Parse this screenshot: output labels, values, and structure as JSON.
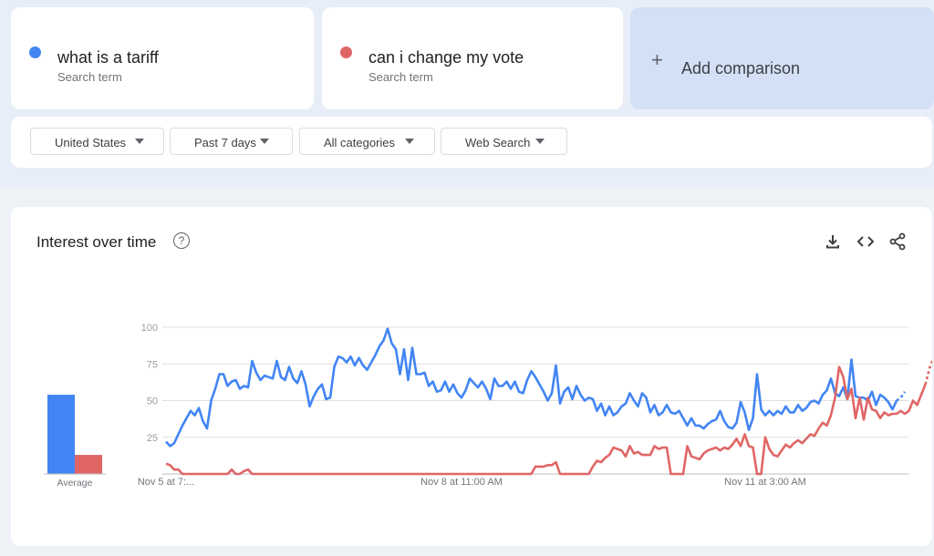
{
  "terms": [
    {
      "label": "what is a tariff",
      "sublabel": "Search term",
      "color": "#4285f4"
    },
    {
      "label": "can i change my vote",
      "sublabel": "Search term",
      "color": "#e06666"
    }
  ],
  "add_comparison": {
    "label": "Add comparison"
  },
  "filters": {
    "region": "United States",
    "time": "Past 7 days",
    "category": "All categories",
    "property": "Web Search"
  },
  "panel": {
    "title": "Interest over time"
  },
  "icons": {
    "help": "help-icon",
    "download": "download-icon",
    "embed": "embed-icon",
    "share": "share-icon"
  },
  "chart_data": {
    "type": "line",
    "title": "Interest over time",
    "ylim": [
      0,
      100
    ],
    "y_ticks": [
      25,
      50,
      75,
      100
    ],
    "x_tick_labels": [
      "Nov 5 at 7:...",
      "Nov 8 at 11:00 AM",
      "Nov 11 at 3:00 AM"
    ],
    "x_tick_index": [
      0,
      72,
      146
    ],
    "grid": true,
    "average_label": "Average",
    "averages": [
      {
        "name": "what is a tariff",
        "value": 54
      },
      {
        "name": "can i change my vote",
        "value": 13
      }
    ],
    "partial_last_points": 2,
    "series": [
      {
        "name": "what is a tariff",
        "color": "#4285f4",
        "values": [
          22,
          19,
          21,
          27,
          33,
          38,
          43,
          40,
          45,
          36,
          31,
          50,
          58,
          68,
          68,
          60,
          63,
          64,
          58,
          60,
          59,
          77,
          69,
          64,
          67,
          66,
          65,
          77,
          66,
          64,
          73,
          65,
          62,
          70,
          61,
          46,
          53,
          58,
          61,
          51,
          52,
          73,
          80,
          79,
          76,
          80,
          74,
          79,
          74,
          71,
          76,
          81,
          87,
          91,
          99,
          89,
          85,
          68,
          85,
          64,
          86,
          68,
          68,
          69,
          60,
          63,
          56,
          57,
          63,
          56,
          61,
          55,
          52,
          57,
          65,
          62,
          59,
          63,
          58,
          51,
          65,
          60,
          60,
          63,
          58,
          63,
          56,
          55,
          64,
          70,
          66,
          61,
          56,
          50,
          55,
          74,
          48,
          56,
          59,
          51,
          60,
          54,
          50,
          52,
          51,
          43,
          48,
          40,
          46,
          40,
          42,
          46,
          48,
          55,
          50,
          46,
          55,
          52,
          42,
          47,
          40,
          42,
          47,
          42,
          41,
          43,
          38,
          33,
          38,
          33,
          33,
          31,
          34,
          36,
          37,
          43,
          36,
          32,
          31,
          35,
          49,
          42,
          30,
          38,
          68,
          44,
          40,
          43,
          40,
          43,
          41,
          46,
          42,
          42,
          47,
          43,
          45,
          49,
          50,
          48,
          54,
          57,
          65,
          55,
          53,
          59,
          51,
          78,
          53,
          52,
          52,
          50,
          56,
          47,
          54,
          52,
          49,
          44,
          50,
          52,
          56
        ]
      },
      {
        "name": "can i change my vote",
        "color": "#e06666",
        "values": [
          7,
          6,
          3,
          3,
          0,
          0,
          0,
          0,
          0,
          0,
          0,
          0,
          0,
          0,
          0,
          0,
          3,
          0,
          0,
          2,
          3,
          0,
          0,
          0,
          0,
          0,
          0,
          0,
          0,
          0,
          0,
          0,
          0,
          0,
          0,
          0,
          0,
          0,
          0,
          0,
          0,
          0,
          0,
          0,
          0,
          0,
          0,
          0,
          0,
          0,
          0,
          0,
          0,
          0,
          0,
          0,
          0,
          0,
          0,
          0,
          0,
          0,
          0,
          0,
          0,
          0,
          0,
          0,
          0,
          0,
          0,
          0,
          0,
          0,
          0,
          0,
          0,
          0,
          0,
          0,
          0,
          0,
          0,
          0,
          0,
          0,
          0,
          0,
          0,
          0,
          5,
          5,
          5,
          6,
          6,
          8,
          0,
          0,
          0,
          0,
          0,
          0,
          0,
          0,
          5,
          9,
          8,
          11,
          13,
          18,
          17,
          16,
          12,
          19,
          14,
          15,
          13,
          13,
          13,
          19,
          17,
          18,
          18,
          0,
          0,
          0,
          0,
          19,
          12,
          11,
          10,
          14,
          16,
          17,
          18,
          16,
          18,
          17,
          20,
          24,
          19,
          27,
          19,
          18,
          0,
          0,
          25,
          17,
          13,
          12,
          16,
          20,
          18,
          21,
          23,
          21,
          24,
          27,
          26,
          31,
          35,
          33,
          40,
          52,
          73,
          66,
          51,
          58,
          38,
          52,
          37,
          52,
          44,
          43,
          38,
          42,
          40,
          41,
          41,
          43,
          41,
          43,
          50,
          47,
          54,
          61,
          72,
          79
        ]
      }
    ]
  }
}
